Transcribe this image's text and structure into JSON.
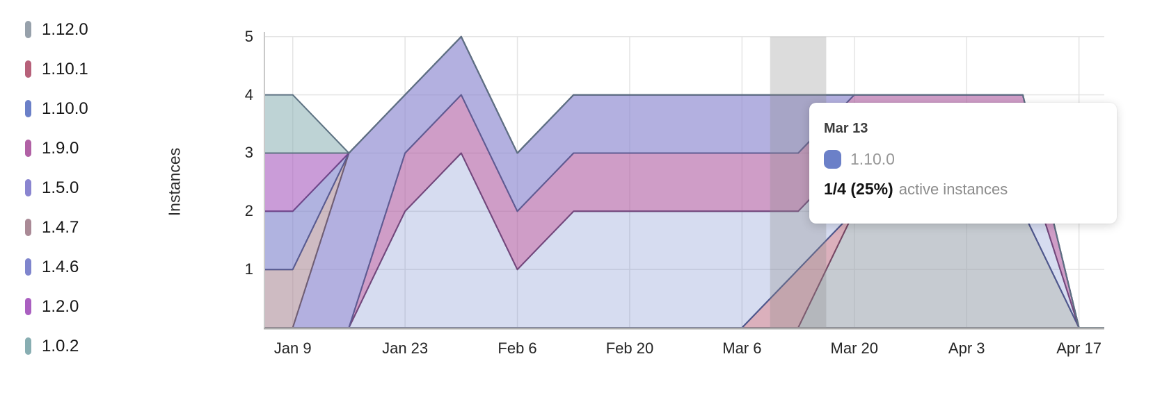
{
  "y_axis": {
    "title": "Instances",
    "tick_labels": [
      "5",
      "4",
      "3",
      "2",
      "1"
    ],
    "tick_values": [
      5,
      4,
      3,
      2,
      1
    ]
  },
  "tooltip": {
    "date": "Mar 13",
    "series": "1.10.0",
    "swatch_color": "#6b80c8",
    "value": "1/4 (25%)",
    "suffix": "active instances"
  },
  "chart_data": {
    "type": "area",
    "stacked": true,
    "title": "",
    "xlabel": "",
    "ylabel": "Instances",
    "ylim": [
      0,
      5
    ],
    "grid": true,
    "legend_position": "left",
    "x": [
      "Jan 2",
      "Jan 9",
      "Jan 16",
      "Jan 23",
      "Jan 30",
      "Feb 6",
      "Feb 13",
      "Feb 20",
      "Feb 27",
      "Mar 6",
      "Mar 13",
      "Mar 20",
      "Mar 27",
      "Apr 3",
      "Apr 10",
      "Apr 17",
      "Apr 24"
    ],
    "x_tick_labels": [
      "Jan 9",
      "Jan 23",
      "Feb 6",
      "Feb 20",
      "Mar 6",
      "Mar 20",
      "Apr 3",
      "Apr 17"
    ],
    "x_tick_indices": [
      1,
      3,
      5,
      7,
      9,
      11,
      13,
      15
    ],
    "hover_index": 10,
    "hover_date": "Mar 13",
    "hover_stripe_color": "rgba(140,140,140,0.30)",
    "gridline_color": "#e4e4e4",
    "axis_line_color": "#c9c9c9",
    "baseline_color": "#ababab",
    "series": [
      {
        "name": "1.12.0",
        "color": "#97a1ab",
        "fill_opacity": 0.55,
        "values": [
          0,
          0,
          0,
          0,
          0,
          0,
          0,
          0,
          0,
          0,
          0,
          2,
          2,
          2,
          2,
          0,
          0
        ]
      },
      {
        "name": "1.10.1",
        "color": "#b7617a",
        "fill_opacity": 0.5,
        "values": [
          0,
          0,
          0,
          0,
          0,
          0,
          0,
          0,
          0,
          0,
          1,
          0,
          0,
          0,
          0,
          0,
          0
        ]
      },
      {
        "name": "1.10.0",
        "color": "#6b80c8",
        "fill_opacity": 0.28,
        "values": [
          0,
          0,
          0,
          2,
          3,
          1,
          2,
          2,
          2,
          2,
          1,
          1,
          1,
          1,
          1,
          0,
          0
        ]
      },
      {
        "name": "1.9.0",
        "color": "#b161a5",
        "fill_opacity": 0.62,
        "values": [
          0,
          0,
          0,
          1,
          1,
          1,
          1,
          1,
          1,
          1,
          1,
          1,
          1,
          1,
          1,
          0,
          0
        ]
      },
      {
        "name": "1.5.0",
        "color": "#8a85d0",
        "fill_opacity": 0.65,
        "values": [
          0,
          0,
          3,
          1,
          1,
          1,
          1,
          1,
          1,
          1,
          1,
          0,
          0,
          0,
          0,
          0,
          0
        ]
      },
      {
        "name": "1.4.7",
        "color": "#aa8a96",
        "fill_opacity": 0.58,
        "values": [
          1,
          1,
          0,
          0,
          0,
          0,
          0,
          0,
          0,
          0,
          0,
          0,
          0,
          0,
          0,
          0,
          0
        ]
      },
      {
        "name": "1.4.6",
        "color": "#7f85cd",
        "fill_opacity": 0.62,
        "values": [
          1,
          1,
          0,
          0,
          0,
          0,
          0,
          0,
          0,
          0,
          0,
          0,
          0,
          0,
          0,
          0,
          0
        ]
      },
      {
        "name": "1.2.0",
        "color": "#aa5fc0",
        "fill_opacity": 0.62,
        "values": [
          1,
          1,
          0,
          0,
          0,
          0,
          0,
          0,
          0,
          0,
          0,
          0,
          0,
          0,
          0,
          0,
          0
        ]
      },
      {
        "name": "1.0.2",
        "color": "#88aeb2",
        "fill_opacity": 0.55,
        "values": [
          1,
          1,
          0,
          0,
          0,
          0,
          0,
          0,
          0,
          0,
          0,
          0,
          0,
          0,
          0,
          0,
          0
        ]
      }
    ]
  }
}
